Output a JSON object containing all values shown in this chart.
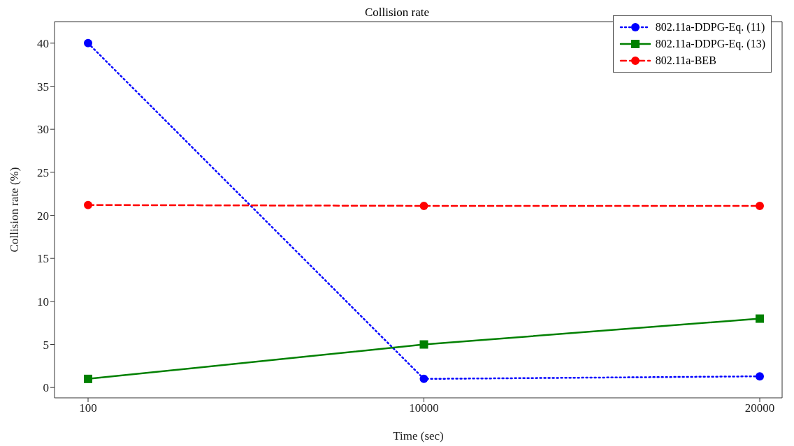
{
  "chart_data": {
    "type": "line",
    "title": "Collision rate",
    "xlabel": "Time (sec)",
    "ylabel": "Collision rate (%)",
    "categories": [
      "100",
      "10000",
      "20000"
    ],
    "series": [
      {
        "name": "802.11a-DDPG-Eq. (11)",
        "color": "#0000ff",
        "values": [
          40,
          1,
          1.3
        ],
        "marker": "circle",
        "line_style": "dotted"
      },
      {
        "name": "802.11a-DDPG-Eq. (13)",
        "color": "#008000",
        "values": [
          1,
          5,
          8
        ],
        "marker": "square",
        "line_style": "solid"
      },
      {
        "name": "802.11a-BEB",
        "color": "#ff0000",
        "values": [
          21.2,
          21.1,
          21.1
        ],
        "marker": "circle",
        "line_style": "dashed"
      }
    ],
    "ylim": [
      -1.2,
      42.5
    ],
    "yticks": [
      0,
      5,
      10,
      15,
      20,
      25,
      30,
      35,
      40
    ],
    "legend": "top right"
  }
}
